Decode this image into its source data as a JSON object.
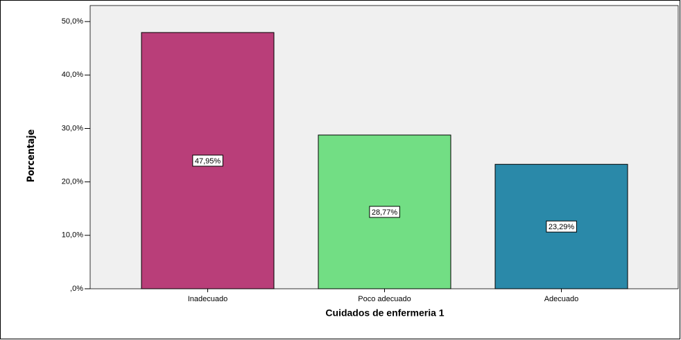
{
  "chart_data": {
    "type": "bar",
    "xlabel": "Cuidados de enfermeria 1",
    "ylabel": "Porcentaje",
    "categories": [
      "Inadecuado",
      "Poco adecuado",
      "Adecuado"
    ],
    "values": [
      47.95,
      28.77,
      23.29
    ],
    "value_labels": [
      "47,95%",
      "28,77%",
      "23,29%"
    ],
    "colors": [
      "#b93e79",
      "#72de84",
      "#2a89a9"
    ],
    "ylim": [
      0,
      53
    ],
    "yticks": [
      {
        "value": 0,
        "label": ",0%"
      },
      {
        "value": 10,
        "label": "10,0%"
      },
      {
        "value": 20,
        "label": "20,0%"
      },
      {
        "value": 30,
        "label": "30,0%"
      },
      {
        "value": 40,
        "label": "40,0%"
      },
      {
        "value": 50,
        "label": "50,0%"
      }
    ],
    "grid": false
  }
}
